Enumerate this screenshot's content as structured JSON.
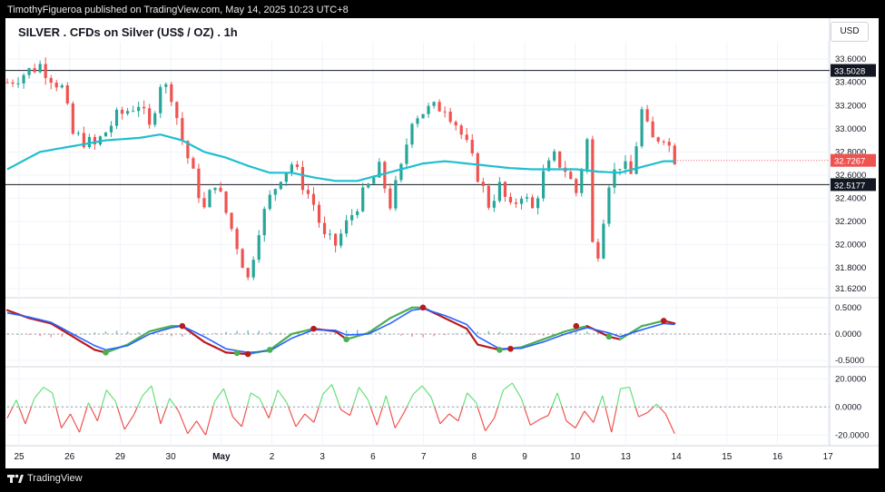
{
  "publisher": "TimothyFigueroa published on TradingView.com, May 14, 2025 10:23 UTC+8",
  "title": "SILVER . CFDs on Silver (US$ / OZ) . 1h",
  "currency": "USD",
  "footer": "TradingView",
  "colors": {
    "up": "#26a69a",
    "down": "#ef5350",
    "ma": "#1fbfcf",
    "line_green": "#4caf50",
    "line_blue": "#2962ff",
    "line_darkred": "#b71c1c",
    "hist_up": "#26a69a",
    "hist_down": "#ef5350",
    "osc_up": "#66e07a",
    "osc_down": "#ef5350",
    "grid": "#f0f3fa",
    "sep": "#d1d4dc",
    "axis_text": "#131722"
  },
  "chart_data": [
    {
      "type": "candlestick",
      "title": "SILVER . CFDs on Silver (US$ / OZ) . 1h",
      "x_labels": [
        "25",
        "26",
        "29",
        "30",
        "May",
        "2",
        "3",
        "6",
        "7",
        "8",
        "9",
        "10",
        "13",
        "14",
        "15",
        "16",
        "17"
      ],
      "ylim": [
        31.55,
        33.75
      ],
      "y_ticks": [
        31.62,
        31.8,
        32.0,
        32.2,
        32.4,
        32.6,
        32.8,
        33.0,
        33.2,
        33.4,
        33.6
      ],
      "y_tick_labels": [
        "31.6200",
        "31.8000",
        "32.0000",
        "32.2000",
        "32.4000",
        "32.6000",
        "32.8000",
        "33.0000",
        "33.2000",
        "33.4000",
        "33.6000"
      ],
      "horizontal_lines": [
        {
          "value": 33.5028,
          "label": "33.5028"
        },
        {
          "value": 32.5177,
          "label": "32.5177"
        }
      ],
      "last_price": {
        "value": 32.7267,
        "label": "32.7267"
      },
      "close_path": [
        [
          0,
          33.4
        ],
        [
          3,
          33.55
        ],
        [
          5,
          33.35
        ],
        [
          6,
          32.95
        ],
        [
          8,
          32.85
        ],
        [
          10,
          33.1
        ],
        [
          12,
          33.22
        ],
        [
          13,
          33.0
        ],
        [
          14,
          33.4
        ],
        [
          15,
          33.3
        ],
        [
          16,
          32.9
        ],
        [
          17,
          32.6
        ],
        [
          18,
          32.3
        ],
        [
          19,
          32.55
        ],
        [
          21,
          32.0
        ],
        [
          22,
          31.7
        ],
        [
          23,
          32.15
        ],
        [
          24,
          32.4
        ],
        [
          25,
          32.6
        ],
        [
          26,
          32.7
        ],
        [
          28,
          32.35
        ],
        [
          29,
          32.05
        ],
        [
          30,
          32.0
        ],
        [
          32,
          32.35
        ],
        [
          34,
          32.65
        ],
        [
          35,
          32.35
        ],
        [
          36,
          32.65
        ],
        [
          37,
          33.1
        ],
        [
          38,
          33.15
        ],
        [
          40,
          33.2
        ],
        [
          41,
          33.05
        ],
        [
          42,
          32.85
        ],
        [
          43,
          32.6
        ],
        [
          44,
          32.35
        ],
        [
          45,
          32.5
        ],
        [
          46,
          32.3
        ],
        [
          47,
          32.45
        ],
        [
          48,
          32.3
        ],
        [
          49,
          32.6
        ],
        [
          50,
          32.75
        ],
        [
          51,
          32.65
        ],
        [
          52,
          32.45
        ],
        [
          53,
          32.9
        ],
        [
          53.5,
          32.0
        ],
        [
          54,
          31.95
        ],
        [
          55,
          32.55
        ],
        [
          56,
          32.7
        ],
        [
          57,
          32.6
        ],
        [
          58,
          33.15
        ],
        [
          58.5,
          33.0
        ],
        [
          59,
          32.9
        ],
        [
          60,
          32.95
        ],
        [
          61,
          32.75
        ]
      ],
      "ma_path": [
        [
          0,
          32.65
        ],
        [
          3,
          32.8
        ],
        [
          6,
          32.85
        ],
        [
          9,
          32.9
        ],
        [
          12,
          32.92
        ],
        [
          14,
          32.95
        ],
        [
          16,
          32.9
        ],
        [
          18,
          32.8
        ],
        [
          20,
          32.75
        ],
        [
          22,
          32.68
        ],
        [
          24,
          32.62
        ],
        [
          26,
          32.62
        ],
        [
          28,
          32.58
        ],
        [
          30,
          32.55
        ],
        [
          32,
          32.55
        ],
        [
          34,
          32.6
        ],
        [
          36,
          32.65
        ],
        [
          38,
          32.7
        ],
        [
          40,
          32.72
        ],
        [
          42,
          32.7
        ],
        [
          44,
          32.68
        ],
        [
          46,
          32.66
        ],
        [
          48,
          32.65
        ],
        [
          50,
          32.65
        ],
        [
          52,
          32.65
        ],
        [
          54,
          32.63
        ],
        [
          56,
          32.62
        ],
        [
          58,
          32.67
        ],
        [
          60,
          32.72
        ],
        [
          61,
          32.72
        ]
      ],
      "x_max": 75
    },
    {
      "type": "line",
      "ylim": [
        -0.55,
        0.6
      ],
      "y_ticks": [
        -0.5,
        0.0,
        0.5
      ],
      "y_tick_labels": [
        "-0.5000",
        "0.0000",
        "0.5000"
      ],
      "series": [
        {
          "color": "green-red",
          "points": [
            [
              0,
              0.45
            ],
            [
              2,
              0.3
            ],
            [
              4,
              0.2
            ],
            [
              6,
              -0.05
            ],
            [
              8,
              -0.3
            ],
            [
              9,
              -0.35
            ],
            [
              11,
              -0.2
            ],
            [
              13,
              0.05
            ],
            [
              15,
              0.15
            ],
            [
              16,
              0.15
            ],
            [
              18,
              -0.15
            ],
            [
              20,
              -0.35
            ],
            [
              22,
              -0.38
            ],
            [
              24,
              -0.3
            ],
            [
              26,
              0.0
            ],
            [
              28,
              0.1
            ],
            [
              30,
              0.05
            ],
            [
              31,
              -0.1
            ],
            [
              33,
              0.02
            ],
            [
              35,
              0.3
            ],
            [
              37,
              0.5
            ],
            [
              38,
              0.5
            ],
            [
              40,
              0.3
            ],
            [
              42,
              0.1
            ],
            [
              43,
              -0.2
            ],
            [
              45,
              -0.3
            ],
            [
              47,
              -0.25
            ],
            [
              49,
              -0.1
            ],
            [
              51,
              0.05
            ],
            [
              53,
              0.15
            ],
            [
              55,
              -0.05
            ],
            [
              56,
              -0.1
            ],
            [
              58,
              0.15
            ],
            [
              60,
              0.25
            ],
            [
              61,
              0.2
            ]
          ]
        },
        {
          "color": "blue",
          "points": [
            [
              0,
              0.4
            ],
            [
              2,
              0.32
            ],
            [
              4,
              0.22
            ],
            [
              6,
              0.0
            ],
            [
              8,
              -0.22
            ],
            [
              9,
              -0.3
            ],
            [
              11,
              -0.22
            ],
            [
              13,
              0.0
            ],
            [
              15,
              0.12
            ],
            [
              16,
              0.15
            ],
            [
              18,
              -0.05
            ],
            [
              20,
              -0.28
            ],
            [
              22,
              -0.35
            ],
            [
              24,
              -0.32
            ],
            [
              26,
              -0.08
            ],
            [
              28,
              0.08
            ],
            [
              30,
              0.07
            ],
            [
              31,
              -0.02
            ],
            [
              33,
              0.0
            ],
            [
              35,
              0.2
            ],
            [
              37,
              0.45
            ],
            [
              38,
              0.48
            ],
            [
              40,
              0.35
            ],
            [
              42,
              0.18
            ],
            [
              43,
              -0.05
            ],
            [
              45,
              -0.28
            ],
            [
              47,
              -0.27
            ],
            [
              49,
              -0.15
            ],
            [
              51,
              0.0
            ],
            [
              53,
              0.12
            ],
            [
              55,
              0.02
            ],
            [
              56,
              -0.05
            ],
            [
              58,
              0.08
            ],
            [
              60,
              0.2
            ],
            [
              61,
              0.18
            ]
          ]
        }
      ],
      "dots": [
        [
          9,
          -0.35,
          "green"
        ],
        [
          16,
          0.15,
          "red"
        ],
        [
          21,
          -0.36,
          "green"
        ],
        [
          22,
          -0.38,
          "red"
        ],
        [
          24,
          -0.3,
          "green"
        ],
        [
          28,
          0.1,
          "red"
        ],
        [
          31,
          -0.1,
          "green"
        ],
        [
          38,
          0.5,
          "red"
        ],
        [
          45,
          -0.3,
          "green"
        ],
        [
          46,
          -0.28,
          "red"
        ],
        [
          52,
          0.15,
          "red"
        ],
        [
          55,
          -0.05,
          "green"
        ],
        [
          60,
          0.25,
          "red"
        ]
      ],
      "histogram": [
        0.01,
        0.0,
        -0.02,
        -0.04,
        -0.06,
        -0.05,
        -0.03,
        0.01,
        0.03,
        0.05,
        0.06,
        0.05,
        0.03,
        0.0,
        -0.02,
        -0.04,
        -0.05,
        -0.03,
        0.0,
        0.02,
        0.04,
        0.06,
        0.07,
        0.06,
        0.04,
        0.02,
        0.0,
        -0.02,
        -0.01,
        0.02,
        0.05,
        0.07,
        0.08,
        0.06,
        0.03,
        0.0,
        -0.03,
        -0.05,
        -0.06,
        -0.04,
        -0.02,
        0.01,
        0.03,
        0.05,
        0.06,
        0.04,
        0.02,
        0.0,
        -0.02,
        -0.03,
        -0.01,
        0.02,
        0.04,
        0.05,
        0.04,
        0.02,
        0.0,
        -0.02,
        -0.01,
        0.01,
        0.02
      ]
    },
    {
      "type": "line",
      "ylim": [
        -25,
        26
      ],
      "y_ticks": [
        -20,
        0,
        20
      ],
      "y_tick_labels": [
        "-20.0000",
        "0.0000",
        "20.0000"
      ],
      "values": [
        -8,
        5,
        -12,
        6,
        14,
        10,
        -15,
        -5,
        -18,
        3,
        -10,
        12,
        4,
        -16,
        -6,
        8,
        15,
        -12,
        6,
        -3,
        -19,
        -10,
        -20,
        4,
        13,
        -7,
        -14,
        10,
        6,
        -8,
        12,
        3,
        -14,
        -5,
        -11,
        9,
        16,
        -2,
        -6,
        14,
        5,
        -13,
        8,
        -15,
        -4,
        9,
        15,
        7,
        -12,
        -5,
        -10,
        10,
        3,
        -17,
        -8,
        12,
        17,
        6,
        -13,
        -9,
        -6,
        10,
        -10,
        -15,
        -3,
        -11,
        8,
        -18,
        13,
        14,
        -7,
        -4,
        2,
        -5,
        -19
      ]
    }
  ]
}
